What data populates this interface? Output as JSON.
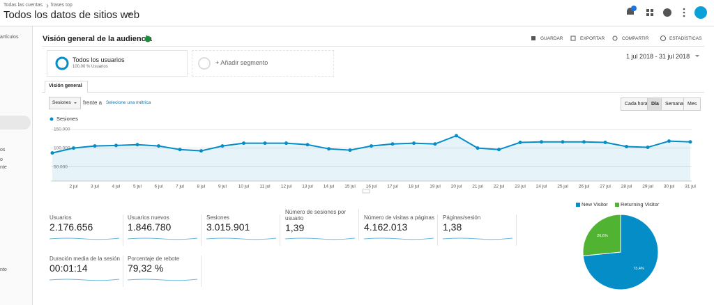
{
  "header": {
    "breadcrumb": [
      "Todas las cuentas",
      "frases top"
    ],
    "title": "Todos los datos de sitios web"
  },
  "sidebar": {
    "items": [
      "artículos",
      "os",
      "o",
      "nte",
      "nto"
    ]
  },
  "report": {
    "title": "Visión general de la audiencia",
    "actions": [
      "GUARDAR",
      "EXPORTAR",
      "COMPARTIR",
      "ESTADÍSTICAS"
    ],
    "segment": {
      "name": "Todos los usuarios",
      "detail": "100,00 % Usuarios"
    },
    "add_segment": "+ Añadir segmento",
    "date_range": "1 jul 2018 - 31 jul 2018",
    "tab": "Visión general",
    "metric_select": "Sesiones",
    "compare_text": "frente a",
    "compare_link": "Selecione una métrica",
    "granularity": [
      "Cada hora",
      "Día",
      "Semana",
      "Mes"
    ]
  },
  "metrics": [
    {
      "label": "Usuarios",
      "value": "2.176.656"
    },
    {
      "label": "Usuarios nuevos",
      "value": "1.846.780"
    },
    {
      "label": "Sesiones",
      "value": "3.015.901"
    },
    {
      "label": "Número de sesiones por usuario",
      "value": "1,39"
    },
    {
      "label": "Número de visitas a páginas",
      "value": "4.162.013"
    },
    {
      "label": "Páginas/sesión",
      "value": "1,38"
    },
    {
      "label": "Duración media de la sesión",
      "value": "00:01:14"
    },
    {
      "label": "Porcentaje de rebote",
      "value": "79,32 %"
    }
  ],
  "chart_data": [
    {
      "type": "line",
      "categories": [
        null,
        "2 jul",
        "3 jul",
        "4 jul",
        "5 jul",
        "6 jul",
        "7 jul",
        "8 jul",
        "9 jul",
        "10 jul",
        "11 jul",
        "12 jul",
        "13 jul",
        "14 jul",
        "15 jul",
        "16 jul",
        "17 jul",
        "18 jul",
        "19 jul",
        "20 jul",
        "21 jul",
        "22 jul",
        "23 jul",
        "24 jul",
        "25 jul",
        "26 jul",
        "27 jul",
        "28 jul",
        "29 jul",
        "30 jul",
        "31 jul"
      ],
      "series": [
        {
          "name": "Sesiones",
          "color": "#058dc7",
          "values": [
            87000,
            100000,
            105500,
            107000,
            109000,
            105500,
            96000,
            92500,
            105500,
            113000,
            113000,
            113000,
            109000,
            98000,
            94500,
            105500,
            111000,
            113000,
            111000,
            133000,
            100000,
            96000,
            115000,
            116500,
            116500,
            116500,
            115000,
            104000,
            102000,
            118500,
            116500
          ]
        }
      ],
      "ylim": [
        12000,
        155000
      ],
      "yticks": [
        {
          "value": 50000,
          "label": "50.000"
        },
        {
          "value": 100000,
          "label": "100.000"
        },
        {
          "value": 150000,
          "label": "150.000"
        }
      ],
      "grid": true
    },
    {
      "type": "pie",
      "categories": [
        "New Visitor",
        "Returning Visitor"
      ],
      "values": [
        73.4,
        26.6
      ],
      "value_labels": [
        "73,4%",
        "26,6%"
      ],
      "colors": [
        "#058dc7",
        "#50b432"
      ]
    }
  ]
}
